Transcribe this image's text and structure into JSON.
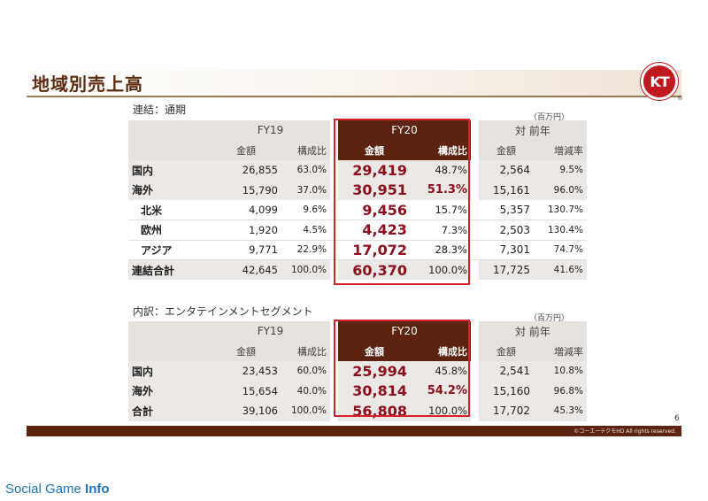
{
  "page": {
    "title": "地域別売上高",
    "logo_text": "KT",
    "logo_mark": "®",
    "page_number": "6",
    "copyright": "©コーエーテクモHD All rights reserved.",
    "watermark_regular": "Social Game",
    "watermark_bold": "Info"
  },
  "colors": {
    "brand_brown": "#5c2410",
    "accent_red": "#d6212b",
    "value_red": "#8b0f1c",
    "logo_red": "#c01920"
  },
  "headers": {
    "fy19": "FY19",
    "fy20": "FY20",
    "prev_year": "対 前年",
    "amount": "金額",
    "ratio": "構成比",
    "growth": "増減率"
  },
  "table1": {
    "label": "連結：通期",
    "unit": "（百万円）",
    "rows": [
      {
        "region": "国内",
        "fy19_amount": "26,855",
        "fy19_ratio": "63.0%",
        "fy20_amount": "29,419",
        "fy20_ratio": "48.7%",
        "py_amount": "2,564",
        "py_rate": "9.5%"
      },
      {
        "region": "海外",
        "fy19_amount": "15,790",
        "fy19_ratio": "37.0%",
        "fy20_amount": "30,951",
        "fy20_ratio": "51.3%",
        "py_amount": "15,161",
        "py_rate": "96.0%"
      },
      {
        "region": "北米",
        "fy19_amount": "4,099",
        "fy19_ratio": "9.6%",
        "fy20_amount": "9,456",
        "fy20_ratio": "15.7%",
        "py_amount": "5,357",
        "py_rate": "130.7%"
      },
      {
        "region": "欧州",
        "fy19_amount": "1,920",
        "fy19_ratio": "4.5%",
        "fy20_amount": "4,423",
        "fy20_ratio": "7.3%",
        "py_amount": "2,503",
        "py_rate": "130.4%"
      },
      {
        "region": "アジア",
        "fy19_amount": "9,771",
        "fy19_ratio": "22.9%",
        "fy20_amount": "17,072",
        "fy20_ratio": "28.3%",
        "py_amount": "7,301",
        "py_rate": "74.7%"
      },
      {
        "region": "連結合計",
        "fy19_amount": "42,645",
        "fy19_ratio": "100.0%",
        "fy20_amount": "60,370",
        "fy20_ratio": "100.0%",
        "py_amount": "17,725",
        "py_rate": "41.6%"
      }
    ]
  },
  "table2": {
    "label": "内訳：エンタテインメントセグメント",
    "unit": "（百万円）",
    "rows": [
      {
        "region": "国内",
        "fy19_amount": "23,453",
        "fy19_ratio": "60.0%",
        "fy20_amount": "25,994",
        "fy20_ratio": "45.8%",
        "py_amount": "2,541",
        "py_rate": "10.8%"
      },
      {
        "region": "海外",
        "fy19_amount": "15,654",
        "fy19_ratio": "40.0%",
        "fy20_amount": "30,814",
        "fy20_ratio": "54.2%",
        "py_amount": "15,160",
        "py_rate": "96.8%"
      },
      {
        "region": "合計",
        "fy19_amount": "39,106",
        "fy19_ratio": "100.0%",
        "fy20_amount": "56,808",
        "fy20_ratio": "100.0%",
        "py_amount": "17,702",
        "py_rate": "45.3%"
      }
    ]
  }
}
